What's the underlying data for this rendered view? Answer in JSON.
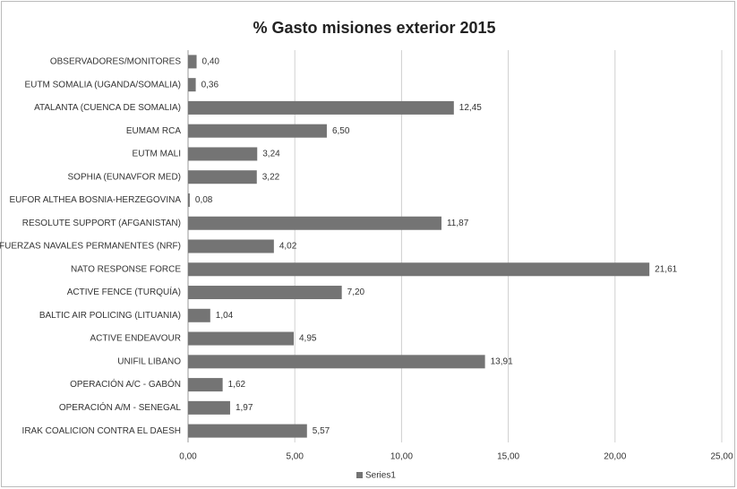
{
  "chart_data": {
    "type": "hbar",
    "title": "% Gasto misiones exterior 2015",
    "categories": [
      "OBSERVADORES/MONITORES",
      "EUTM SOMALIA (UGANDA/SOMALIA)",
      "ATALANTA (CUENCA DE SOMALIA)",
      "EUMAM RCA",
      "EUTM MALI",
      "SOPHIA (EUNAVFOR MED)",
      "EUFOR ALTHEA BOSNIA-HERZEGOVINA",
      "RESOLUTE SUPPORT (AFGANISTAN)",
      "FUERZAS NAVALES PERMANENTES (NRF)",
      "NATO RESPONSE FORCE",
      "ACTIVE FENCE (TURQUÍA)",
      "BALTIC AIR POLICING (LITUANIA)",
      "ACTIVE ENDEAVOUR",
      "UNIFIL LIBANO",
      "OPERACIÓN A/C - GABÓN",
      "OPERACIÓN A/M - SENEGAL",
      "IRAK COALICION CONTRA EL DAESH"
    ],
    "series": [
      {
        "name": "Series1",
        "color": "#747474",
        "values": [
          0.4,
          0.36,
          12.45,
          6.5,
          3.24,
          3.22,
          0.08,
          11.87,
          4.02,
          21.61,
          7.2,
          1.04,
          4.95,
          13.91,
          1.62,
          1.97,
          5.57
        ],
        "value_labels": [
          "0,40",
          "0,36",
          "12,45",
          "6,50",
          "3,24",
          "3,22",
          "0,08",
          "11,87",
          "4,02",
          "21,61",
          "7,20",
          "1,04",
          "4,95",
          "13,91",
          "1,62",
          "1,97",
          "5,57"
        ]
      }
    ],
    "xlim": [
      0,
      25
    ],
    "xticks": [
      {
        "value": 0,
        "label": "0,00"
      },
      {
        "value": 5,
        "label": "5,00"
      },
      {
        "value": 10,
        "label": "10,00"
      },
      {
        "value": 15,
        "label": "15,00"
      },
      {
        "value": 20,
        "label": "20,00"
      },
      {
        "value": 25,
        "label": "25,00"
      }
    ],
    "grid": true,
    "legend": "bottom"
  }
}
